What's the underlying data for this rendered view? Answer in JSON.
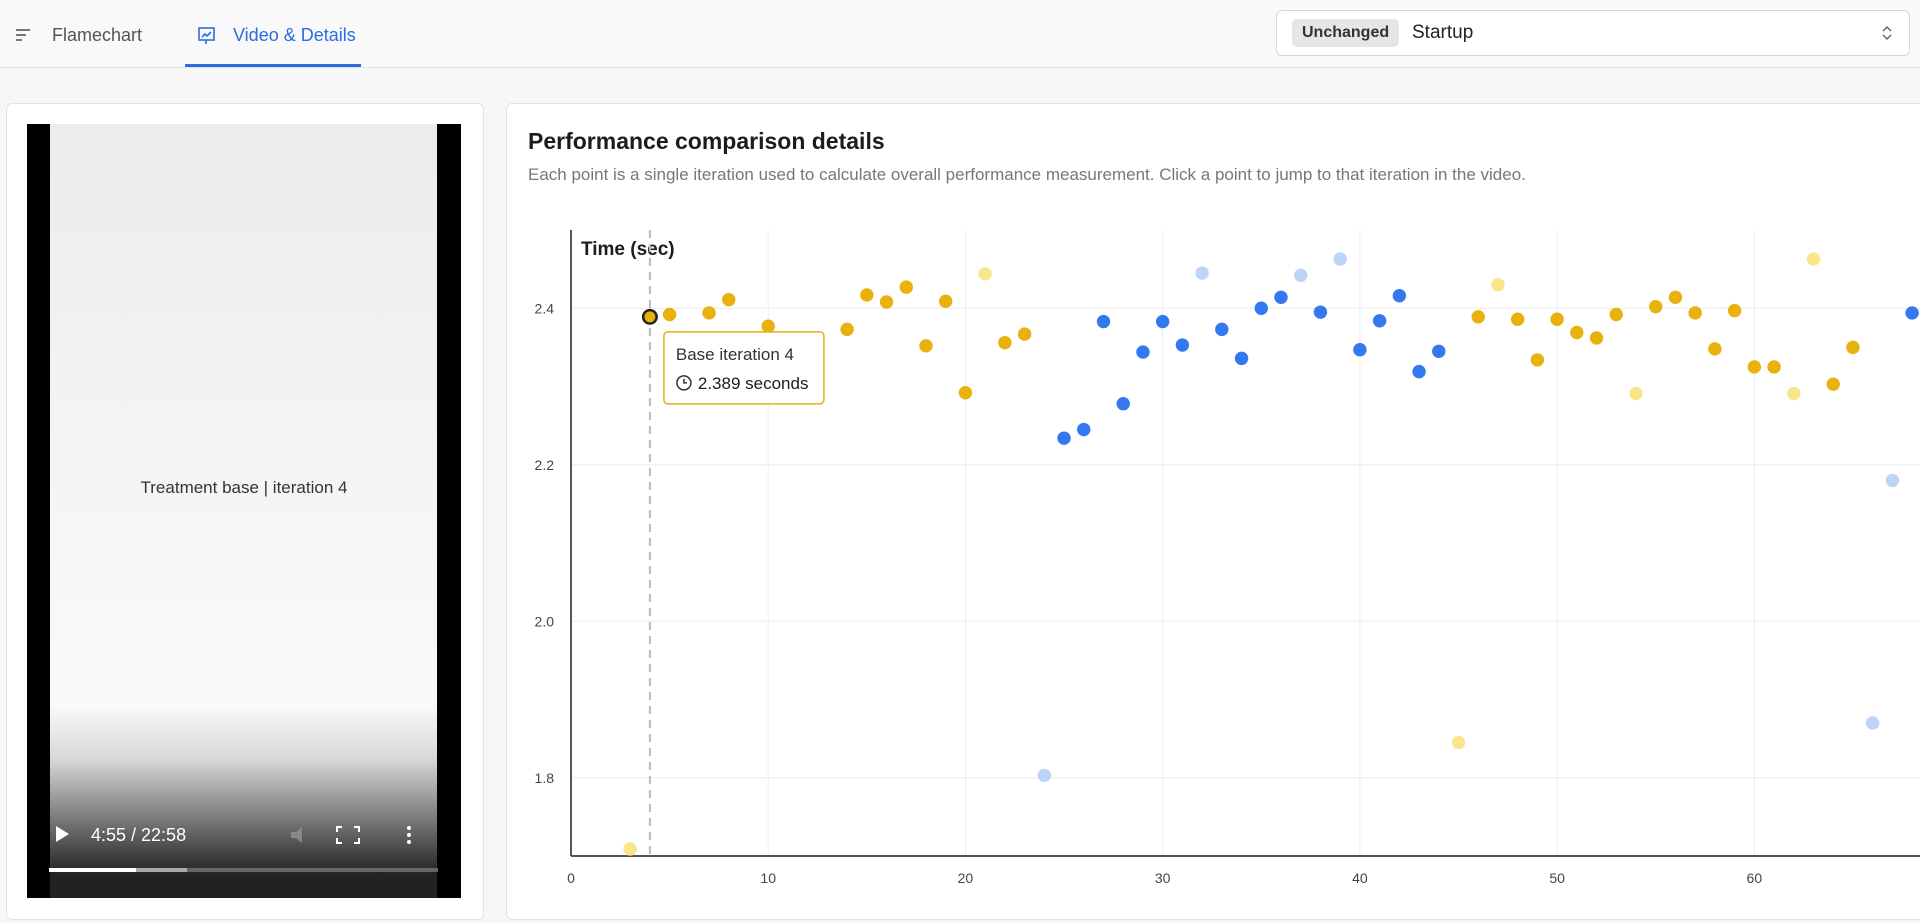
{
  "tabs": [
    "Flamechart",
    "Video & Details"
  ],
  "select": {
    "badge": "Unchanged",
    "value": "Startup"
  },
  "video": {
    "caption": "Treatment base | iteration 4",
    "time": "4:55 / 22:58"
  },
  "panel": {
    "title": "Performance comparison details",
    "subtitle": "Each point is a single iteration used to calculate overall performance measurement. Click a point to jump to that iteration in the video."
  },
  "chart_data": {
    "type": "scatter",
    "y_label": "Time (sec)",
    "xlim": [
      0,
      68.4
    ],
    "ylim": [
      1.7,
      2.5
    ],
    "xticks": [
      0,
      10,
      20,
      30,
      40,
      50,
      60
    ],
    "yticks": [
      1.8,
      {
        "value": 2,
        "label": "2.0"
      },
      2.2,
      2.4
    ],
    "grid": true,
    "tooltip": {
      "title": "Base iteration 4",
      "text": "2.389 seconds"
    },
    "series": [
      {
        "color": "#e8b10b",
        "x": [
          4,
          5,
          7,
          8,
          10,
          14,
          15,
          16,
          17,
          18,
          19,
          20,
          22,
          23,
          46,
          48,
          49,
          50,
          51,
          52,
          53,
          55,
          56,
          57,
          58,
          59,
          60,
          61,
          64,
          65
        ],
        "values": [
          2.389,
          2.392,
          2.394,
          2.411,
          2.377,
          2.373,
          2.417,
          2.408,
          2.427,
          2.352,
          2.409,
          2.292,
          2.356,
          2.367,
          2.389,
          2.386,
          2.334,
          2.386,
          2.369,
          2.362,
          2.392,
          2.402,
          2.414,
          2.394,
          2.348,
          2.397,
          2.325,
          2.325,
          2.303,
          2.35
        ]
      },
      {
        "color": "#f9e58a",
        "x": [
          3,
          21,
          45,
          47,
          54,
          62,
          63
        ],
        "values": [
          1.709,
          2.444,
          1.845,
          2.43,
          2.291,
          2.291,
          2.463
        ]
      },
      {
        "color": "#3478f0",
        "x": [
          25,
          26,
          27,
          28,
          29,
          30,
          31,
          33,
          34,
          35,
          36,
          38,
          40,
          41,
          42,
          43,
          44,
          68
        ],
        "values": [
          2.234,
          2.245,
          2.383,
          2.278,
          2.344,
          2.383,
          2.353,
          2.373,
          2.336,
          2.4,
          2.414,
          2.395,
          2.347,
          2.384,
          2.416,
          2.319,
          2.345,
          2.394
        ]
      },
      {
        "color": "#bcd4f8",
        "x": [
          24,
          32,
          37,
          39,
          66,
          67
        ],
        "values": [
          1.803,
          2.445,
          2.442,
          2.463,
          1.87,
          2.18
        ]
      }
    ]
  }
}
